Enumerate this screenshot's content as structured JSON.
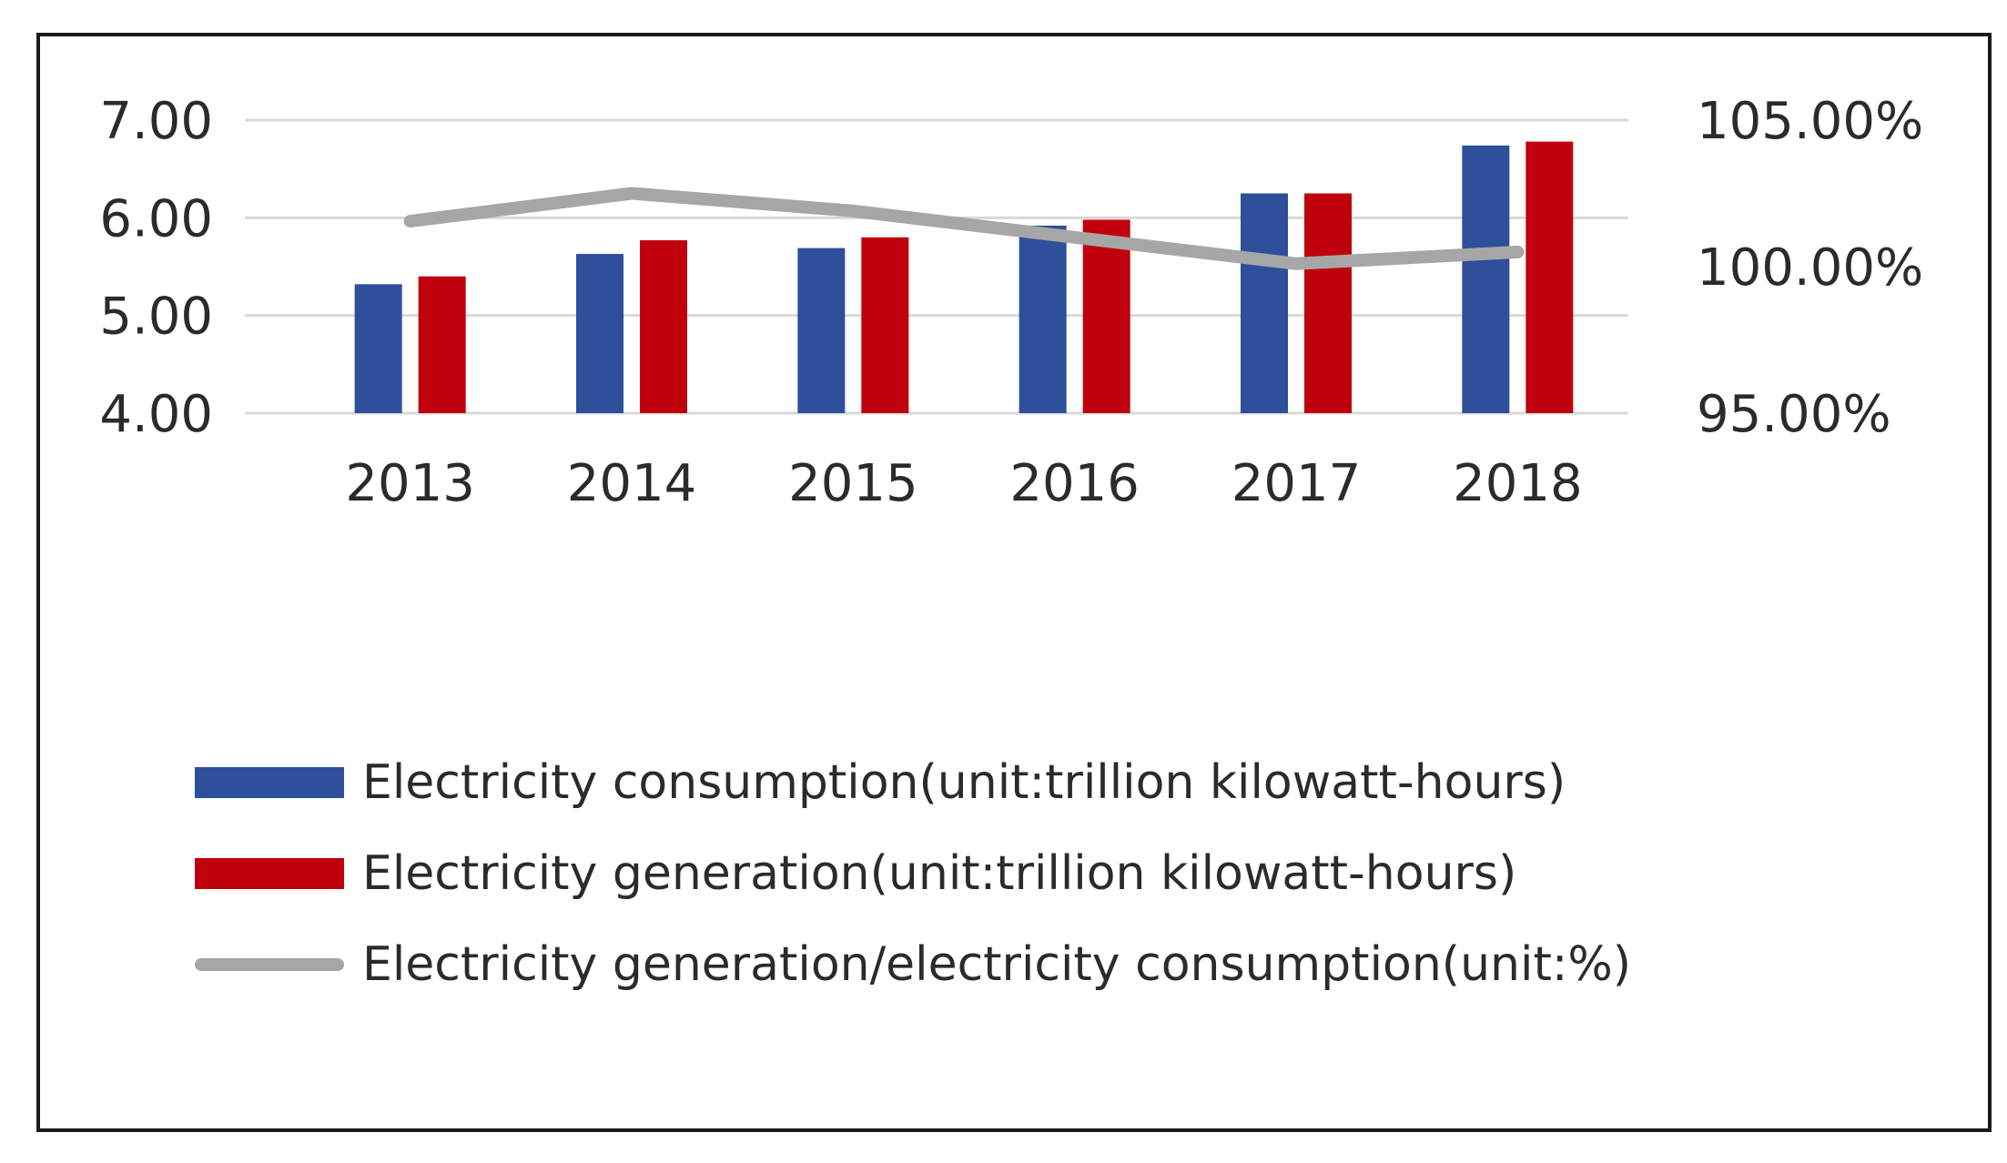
{
  "chart_data": {
    "type": "bar",
    "title": "",
    "xlabel": "",
    "ylabel": "",
    "categories": [
      "2013",
      "2014",
      "2015",
      "2016",
      "2017",
      "2018"
    ],
    "ylim": [
      4.0,
      7.0
    ],
    "y2lim": [
      0.95,
      1.05
    ],
    "yticks": [
      "4.00",
      "5.00",
      "6.00",
      "7.00"
    ],
    "y2ticks": [
      "95.00%",
      "100.00%",
      "105.00%"
    ],
    "grid": true,
    "legend_position": "bottom",
    "series": [
      {
        "name": "Electricity consumption(unit:trillion kilowatt-hours)",
        "type": "bar",
        "axis": "left",
        "color": "#2e4f9a",
        "values": [
          5.32,
          5.63,
          5.69,
          5.92,
          6.25,
          6.74
        ]
      },
      {
        "name": "Electricity generation(unit:trillion kilowatt-hours)",
        "type": "bar",
        "axis": "left",
        "color": "#c0000c",
        "values": [
          5.4,
          5.77,
          5.8,
          5.98,
          6.25,
          6.78
        ]
      },
      {
        "name": "Electricity generation/electricity consumption(unit:%)",
        "type": "line",
        "axis": "right",
        "color": "#a6a6a6",
        "values": [
          1.0155,
          1.025,
          1.019,
          1.01,
          1.001,
          1.005
        ]
      }
    ]
  }
}
